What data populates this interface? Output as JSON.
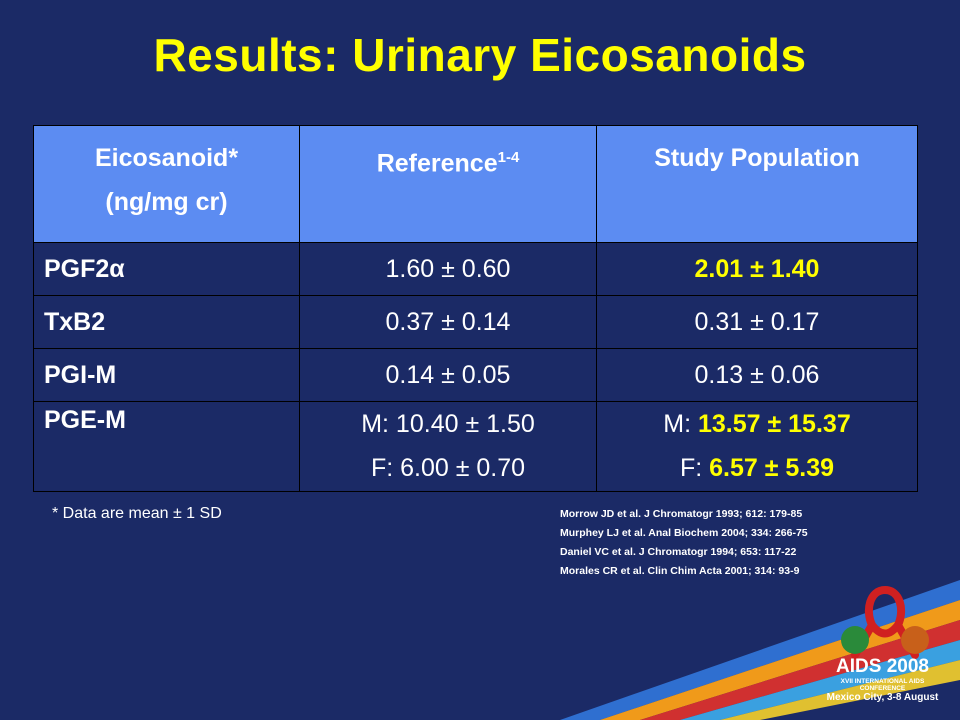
{
  "title": "Results: Urinary Eicosanoids",
  "table": {
    "headers": {
      "col1_line1": "Eicosanoid*",
      "col1_line2": "(ng/mg cr)",
      "col2_text": "Reference",
      "col2_sup": "1-4",
      "col3": "Study Population"
    },
    "rows": [
      {
        "name": "PGF2α",
        "reference": "1.60 ± 0.60",
        "study": "2.01 ± 1.40"
      },
      {
        "name": "TxB2",
        "reference": "0.37 ± 0.14",
        "study": "0.31 ± 0.17"
      },
      {
        "name": "PGI-M",
        "reference": "0.14 ± 0.05",
        "study": "0.13 ± 0.06"
      }
    ],
    "pge": {
      "name": "PGE-M",
      "ref_m": "M: 10.40 ± 1.50",
      "ref_f": "F: 6.00 ± 0.70",
      "study_m_label": "M: ",
      "study_m_value": "13.57 ± 15.37",
      "study_f_label": "F: ",
      "study_f_value": "6.57 ± 5.39"
    }
  },
  "footnote": "* Data are mean ± 1 SD",
  "references": [
    "Morrow JD et al. J Chromatogr 1993; 612: 179-85",
    "Murphey LJ et al. Anal Biochem 2004; 334: 266-75",
    "Daniel VC et al. J Chromatogr 1994; 653: 117-22",
    "Morales CR et al. Clin Chim Acta 2001; 314: 93-9"
  ],
  "logo": {
    "main": "AIDS 2008",
    "sub": "XVII INTERNATIONAL AIDS CONFERENCE",
    "place": "Mexico City, 3-8 August"
  },
  "colors": {
    "background": "#1b2a66",
    "title": "#ffff00",
    "header": "#5c8cf2",
    "highlight": "#ffff00"
  }
}
